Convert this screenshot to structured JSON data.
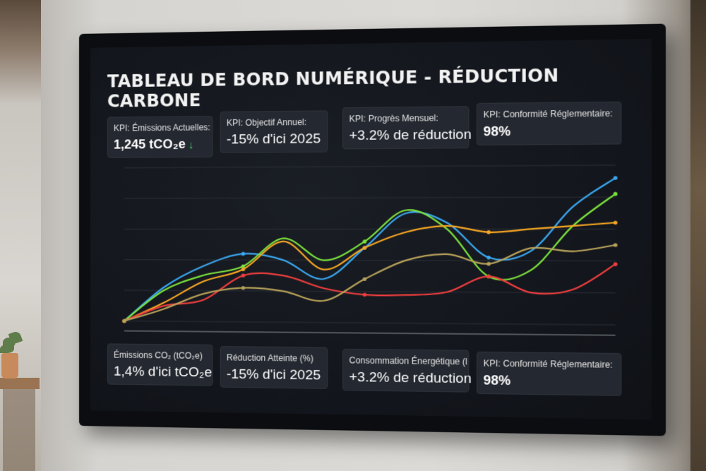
{
  "dashboard": {
    "title": "TABLEAU DE BORD NUMÉRIQUE - RÉDUCTION CARBONE"
  },
  "kpis_top": [
    {
      "label": "KPI: Émissions Actuelles:",
      "value": "1,245 tCO₂e",
      "trend_icon": "arrow-down-icon"
    },
    {
      "label": "KPI: Objectif Annuel:",
      "value": "-15% d'ici 2025"
    },
    {
      "label": "KPI: Progrès Mensuel:",
      "value": "+3.2% de réduction"
    },
    {
      "label": "KPI: Conformité Réglementaire:",
      "value": "98%"
    }
  ],
  "kpis_bottom": [
    {
      "label": "Émissions CO₂ (tCO₂e)",
      "value": "1,4% d'ici tCO₂e"
    },
    {
      "label": "Réduction Atteinte (%)",
      "value": "-15% d'ici 2025"
    },
    {
      "label": "Consommation Énergétique (l",
      "value": "+3.2% de réduction"
    },
    {
      "label": "KPI: Conformité Réglementaire:",
      "value": "98%"
    }
  ],
  "colors": {
    "blue": "#3aa7f0",
    "green": "#7be23c",
    "orange": "#f6a623",
    "red": "#ef3e3e",
    "olive": "#b8a25a",
    "trend_down": "#3ee26a"
  },
  "chart_data": {
    "type": "line",
    "grid": true,
    "legend": "none",
    "ylim": [
      0,
      100
    ],
    "x": [
      0,
      1,
      2,
      3,
      4,
      5,
      6,
      7,
      8,
      9,
      10,
      11,
      12
    ],
    "series": [
      {
        "color": "#3aa7f0",
        "values": [
          0,
          22,
          36,
          44,
          40,
          28,
          48,
          70,
          64,
          42,
          46,
          74,
          92
        ]
      },
      {
        "color": "#7be23c",
        "values": [
          0,
          20,
          30,
          36,
          54,
          40,
          52,
          72,
          60,
          30,
          34,
          62,
          82
        ]
      },
      {
        "color": "#f6a623",
        "values": [
          0,
          12,
          26,
          34,
          52,
          34,
          48,
          58,
          62,
          58,
          60,
          62,
          64
        ]
      },
      {
        "color": "#ef3e3e",
        "values": [
          0,
          10,
          14,
          30,
          30,
          22,
          18,
          18,
          20,
          30,
          20,
          22,
          38
        ]
      },
      {
        "color": "#b8a25a",
        "values": [
          0,
          8,
          18,
          22,
          20,
          14,
          28,
          40,
          44,
          38,
          48,
          46,
          50
        ]
      }
    ]
  }
}
